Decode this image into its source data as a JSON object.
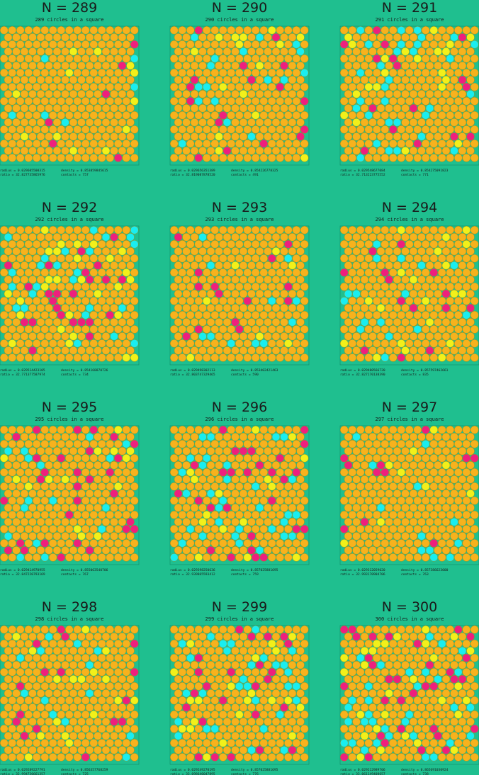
{
  "panels": [
    {
      "title": "N = 289",
      "subtitle": "289 circles in a square",
      "radius": "radius =  0.029605500315",
      "density": "density = 0.853859845615",
      "ratio": "ratio  = 32.827735865976",
      "contacts": "contacts = 757"
    },
    {
      "title": "N = 290",
      "subtitle": "290 circles in a square",
      "radius": "radius =  0.029656351389",
      "density": "density = 0.854226778325",
      "ratio": "ratio  = 32.819087878520",
      "contacts": "contacts = 491"
    },
    {
      "title": "N = 291",
      "subtitle": "291 circles in a square",
      "radius": "radius =  0.029548677084",
      "density": "density = 0.854275091823",
      "ratio": "ratio  = 32.713223775552",
      "contacts": "contacts = 771"
    },
    {
      "title": "N = 292",
      "subtitle": "292 circles in a square",
      "radius": "radius =  0.029514423105",
      "density": "density = 0.854168870726",
      "ratio": "ratio  = 32.771377587974",
      "contacts": "contacts = 734"
    },
    {
      "title": "N = 293",
      "subtitle": "293 circles in a square",
      "radius": "radius =  0.029498302113",
      "density": "density = 0.853402421463",
      "ratio": "ratio  = 32.803747329465",
      "contacts": "contacts = 590"
    },
    {
      "title": "N = 294",
      "subtitle": "294 circles in a square",
      "radius": "radius =  0.029480566720",
      "density": "density = 0.857597462661",
      "ratio": "ratio  = 32.827170138390",
      "contacts": "contacts = 835"
    },
    {
      "title": "N = 295",
      "subtitle": "295 circles in a square",
      "radius": "radius =  0.029414970955",
      "density": "density = 0.855063540706",
      "ratio": "ratio  = 32.847220793169",
      "contacts": "contacts = 767"
    },
    {
      "title": "N = 296",
      "subtitle": "296 circles in a square",
      "radius": "radius =  0.029398250636",
      "density": "density = 0.857025881695",
      "ratio": "ratio  = 32.939865593412",
      "contacts": "contacts = 759"
    },
    {
      "title": "N = 297",
      "subtitle": "297 circles in a square",
      "radius": "radius =  0.029312059020",
      "density": "density = 0.857386623000",
      "ratio": "ratio  = 32.993170904706",
      "contacts": "contacts = 763"
    },
    {
      "title": "N = 298",
      "subtitle": "298 circles in a square",
      "radius": "radius =  0.029289227791",
      "density": "density = 0.856357768259",
      "ratio": "ratio  = 32.994730661357",
      "contacts": "contacts = 725"
    },
    {
      "title": "N = 299",
      "subtitle": "299 circles in a square",
      "radius": "radius =  0.029249270195",
      "density": "density = 0.857025881695",
      "ratio": "ratio  = 33.098640047895",
      "contacts": "contacts = 776"
    },
    {
      "title": "N = 300",
      "subtitle": "300 circles in a square",
      "radius": "radius =  0.029212989706",
      "density": "density = 0.865691030924",
      "ratio": "ratio  = 33.061149408657",
      "contacts": "contacts = 738"
    }
  ]
}
